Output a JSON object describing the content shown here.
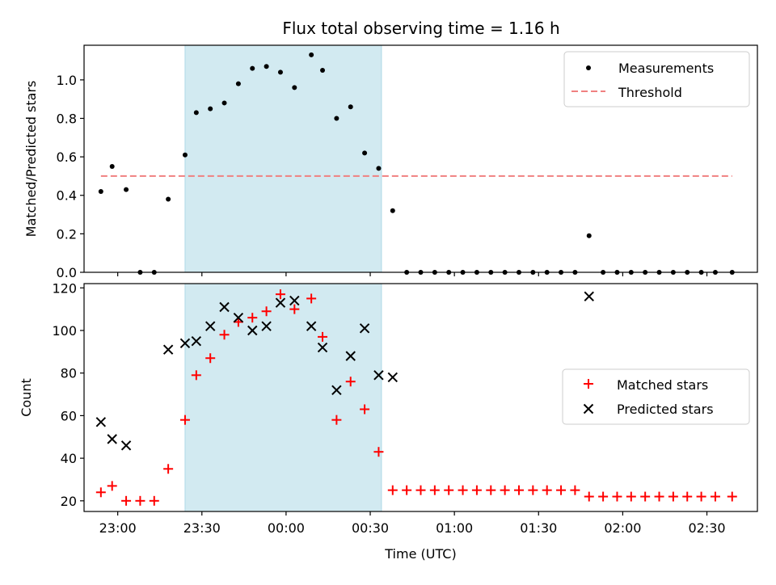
{
  "title": "Flux total observing time = 1.16 h",
  "colors": {
    "shade": "#add8e6",
    "measurement": "#000000",
    "threshold": "#f08080",
    "matched": "#ff0000",
    "predicted": "#000000"
  },
  "chart_data": [
    {
      "type": "scatter",
      "panel": "top",
      "ylabel": "Matched/Predicted stars",
      "xlim": [
        "22:48",
        "02:48"
      ],
      "ylim": [
        0,
        1.18
      ],
      "yticks": [
        "0.0",
        "0.2",
        "0.4",
        "0.6",
        "0.8",
        "1.0"
      ],
      "shaded_span": [
        "23:24",
        "00:34"
      ],
      "legend_placement": "upper right",
      "legend": [
        "Measurements",
        "Threshold"
      ],
      "threshold": {
        "name": "Threshold",
        "y": 0.5,
        "x_start": "22:54",
        "x_end": "02:39"
      },
      "series": [
        {
          "name": "Measurements",
          "points": [
            [
              "22:54",
              0.42
            ],
            [
              "22:58",
              0.55
            ],
            [
              "23:03",
              0.43
            ],
            [
              "23:08",
              0.0
            ],
            [
              "23:13",
              0.0
            ],
            [
              "23:18",
              0.38
            ],
            [
              "23:24",
              0.61
            ],
            [
              "23:28",
              0.83
            ],
            [
              "23:33",
              0.85
            ],
            [
              "23:38",
              0.88
            ],
            [
              "23:43",
              0.98
            ],
            [
              "23:48",
              1.06
            ],
            [
              "23:53",
              1.07
            ],
            [
              "23:58",
              1.04
            ],
            [
              "00:03",
              0.96
            ],
            [
              "00:09",
              1.13
            ],
            [
              "00:13",
              1.05
            ],
            [
              "00:18",
              0.8
            ],
            [
              "00:23",
              0.86
            ],
            [
              "00:28",
              0.62
            ],
            [
              "00:33",
              0.54
            ],
            [
              "00:38",
              0.32
            ],
            [
              "00:43",
              0.0
            ],
            [
              "00:48",
              0.0
            ],
            [
              "00:53",
              0.0
            ],
            [
              "00:58",
              0.0
            ],
            [
              "01:03",
              0.0
            ],
            [
              "01:08",
              0.0
            ],
            [
              "01:13",
              0.0
            ],
            [
              "01:18",
              0.0
            ],
            [
              "01:23",
              0.0
            ],
            [
              "01:28",
              0.0
            ],
            [
              "01:33",
              0.0
            ],
            [
              "01:38",
              0.0
            ],
            [
              "01:43",
              0.0
            ],
            [
              "01:48",
              0.19
            ],
            [
              "01:53",
              0.0
            ],
            [
              "01:58",
              0.0
            ],
            [
              "02:03",
              0.0
            ],
            [
              "02:08",
              0.0
            ],
            [
              "02:13",
              0.0
            ],
            [
              "02:18",
              0.0
            ],
            [
              "02:23",
              0.0
            ],
            [
              "02:28",
              0.0
            ],
            [
              "02:33",
              0.0
            ],
            [
              "02:39",
              0.0
            ]
          ]
        }
      ]
    },
    {
      "type": "scatter",
      "panel": "bottom",
      "xlabel": "Time (UTC)",
      "ylabel": "Count",
      "xlim": [
        "22:48",
        "02:48"
      ],
      "ylim": [
        15,
        122
      ],
      "xticks": [
        "23:00",
        "23:30",
        "00:00",
        "00:30",
        "01:00",
        "01:30",
        "02:00",
        "02:30"
      ],
      "yticks": [
        "20",
        "40",
        "60",
        "80",
        "100",
        "120"
      ],
      "shaded_span": [
        "23:24",
        "00:34"
      ],
      "legend_placement": "center right",
      "legend": [
        "Matched stars",
        "Predicted stars"
      ],
      "series": [
        {
          "name": "Matched stars",
          "points": [
            [
              "22:54",
              24
            ],
            [
              "22:58",
              27
            ],
            [
              "23:03",
              20
            ],
            [
              "23:08",
              20
            ],
            [
              "23:13",
              20
            ],
            [
              "23:18",
              35
            ],
            [
              "23:24",
              58
            ],
            [
              "23:28",
              79
            ],
            [
              "23:33",
              87
            ],
            [
              "23:38",
              98
            ],
            [
              "23:43",
              104
            ],
            [
              "23:48",
              106
            ],
            [
              "23:53",
              109
            ],
            [
              "23:58",
              117
            ],
            [
              "00:03",
              110
            ],
            [
              "00:09",
              115
            ],
            [
              "00:13",
              97
            ],
            [
              "00:18",
              58
            ],
            [
              "00:23",
              76
            ],
            [
              "00:28",
              63
            ],
            [
              "00:33",
              43
            ],
            [
              "00:38",
              25
            ],
            [
              "00:43",
              25
            ],
            [
              "00:48",
              25
            ],
            [
              "00:53",
              25
            ],
            [
              "00:58",
              25
            ],
            [
              "01:03",
              25
            ],
            [
              "01:08",
              25
            ],
            [
              "01:13",
              25
            ],
            [
              "01:18",
              25
            ],
            [
              "01:23",
              25
            ],
            [
              "01:28",
              25
            ],
            [
              "01:33",
              25
            ],
            [
              "01:38",
              25
            ],
            [
              "01:43",
              25
            ],
            [
              "01:48",
              22
            ],
            [
              "01:53",
              22
            ],
            [
              "01:58",
              22
            ],
            [
              "02:03",
              22
            ],
            [
              "02:08",
              22
            ],
            [
              "02:13",
              22
            ],
            [
              "02:18",
              22
            ],
            [
              "02:23",
              22
            ],
            [
              "02:28",
              22
            ],
            [
              "02:33",
              22
            ],
            [
              "02:39",
              22
            ]
          ]
        },
        {
          "name": "Predicted stars",
          "points": [
            [
              "22:54",
              57
            ],
            [
              "22:58",
              49
            ],
            [
              "23:03",
              46
            ],
            [
              "23:18",
              91
            ],
            [
              "23:24",
              94
            ],
            [
              "23:28",
              95
            ],
            [
              "23:33",
              102
            ],
            [
              "23:38",
              111
            ],
            [
              "23:43",
              106
            ],
            [
              "23:48",
              100
            ],
            [
              "23:53",
              102
            ],
            [
              "23:58",
              113
            ],
            [
              "00:03",
              114
            ],
            [
              "00:09",
              102
            ],
            [
              "00:13",
              92
            ],
            [
              "00:18",
              72
            ],
            [
              "00:23",
              88
            ],
            [
              "00:28",
              101
            ],
            [
              "00:33",
              79
            ],
            [
              "00:38",
              78
            ],
            [
              "01:48",
              116
            ]
          ]
        }
      ]
    }
  ]
}
